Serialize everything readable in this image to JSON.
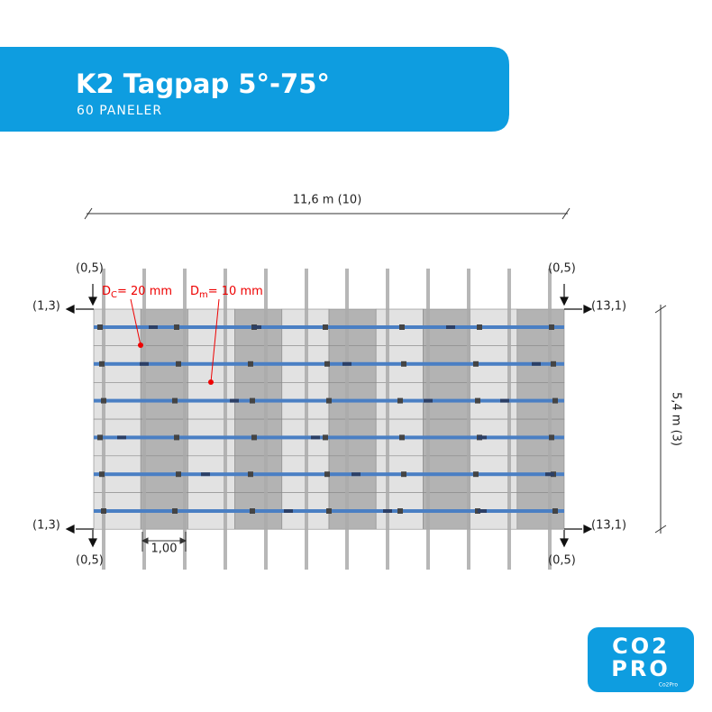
{
  "header": {
    "title": "K2 Tagpap 5°-75°",
    "subtitle": "60 PANELER"
  },
  "dimensions": {
    "width": "11,6 m (10)",
    "height": "5,4 m (3)",
    "panel_gap": "1,00"
  },
  "offsets": {
    "top_left_vertical": "(0,5)",
    "top_left_horizontal": "(1,3)",
    "top_right_vertical": "(0,5)",
    "top_right_horizontal": "(13,1)",
    "bottom_left_horizontal": "(1,3)",
    "bottom_left_vertical": "(0,5)",
    "bottom_right_horizontal": "(13,1)",
    "bottom_right_vertical": "(0,5)"
  },
  "annotations": [
    {
      "symbol": "D",
      "sub": "C",
      "value": "= 20 mm"
    },
    {
      "symbol": "D",
      "sub": "m",
      "value": "= 10 mm"
    }
  ],
  "logo": {
    "line1": "CO2",
    "line2": "PRO",
    "caption": "Co2Pro"
  }
}
